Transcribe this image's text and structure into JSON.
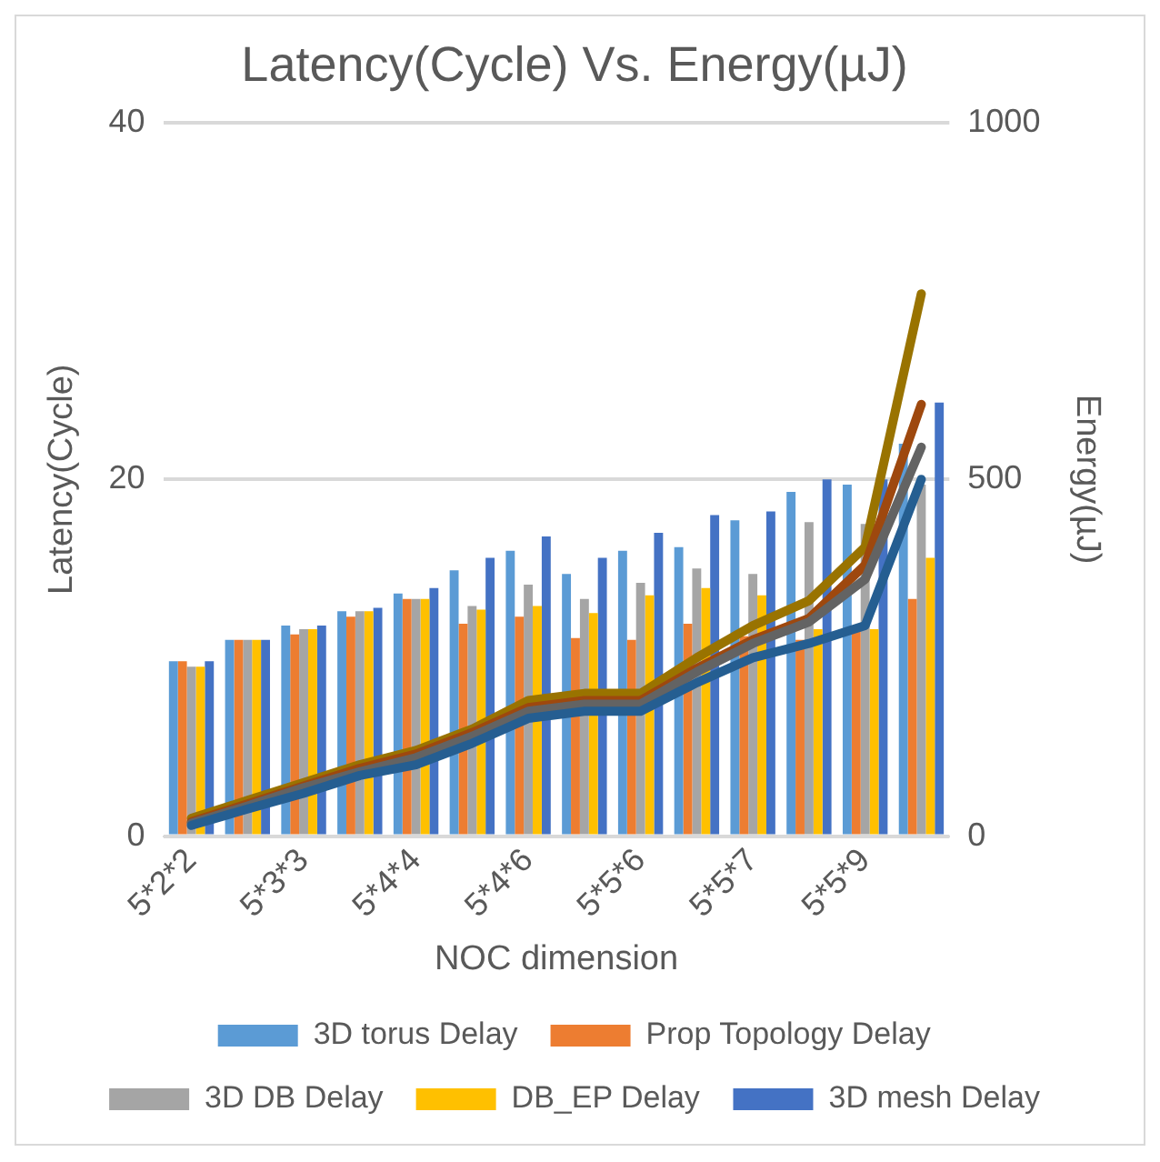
{
  "chart_data": {
    "type": "bar",
    "title": "Latency(Cycle) Vs. Energy(µJ)",
    "xlabel": "NOC dimension",
    "ylabel": "Latency(Cycle)",
    "y2label": "Energy(µJ)",
    "categories": [
      "5*2*2",
      null,
      "5*3*3",
      null,
      "5*4*4",
      null,
      "5*4*6",
      null,
      "5*5*6",
      null,
      "5*5*7",
      null,
      "5*5*9",
      null
    ],
    "series": [
      {
        "name": "3D torus Delay",
        "color": "#5b9bd5",
        "values": [
          9.8,
          11.0,
          11.8,
          12.6,
          13.6,
          14.9,
          16.0,
          14.7,
          16.0,
          16.2,
          17.7,
          19.3,
          19.7,
          22
        ]
      },
      {
        "name": "Prop Topology Delay",
        "color": "#ed7d31",
        "values": [
          9.8,
          11.0,
          11.3,
          12.3,
          13.3,
          11.9,
          12.3,
          11.1,
          11.0,
          11.9,
          11.2,
          11.0,
          11.5,
          13.3
        ]
      },
      {
        "name": "3D DB Delay",
        "color": "#a5a5a5",
        "values": [
          9.5,
          11.0,
          11.6,
          12.6,
          13.3,
          12.9,
          14.1,
          13.3,
          14.2,
          15.0,
          14.7,
          17.6,
          17.5,
          19.7
        ]
      },
      {
        "name": "DB_EP Delay",
        "color": "#ffc000",
        "values": [
          9.5,
          11.0,
          11.6,
          12.6,
          13.3,
          12.7,
          12.9,
          12.5,
          13.5,
          13.9,
          13.5,
          11.6,
          11.6,
          15.6
        ]
      },
      {
        "name": "3D mesh Delay",
        "color": "#4472c4",
        "values": [
          9.8,
          11.0,
          11.8,
          12.8,
          13.9,
          15.6,
          16.8,
          15.6,
          17.0,
          18.0,
          18.2,
          20.0,
          20.0,
          24.3
        ]
      },
      {
        "type": "line",
        "axis": "y2",
        "color": "#255e91",
        "values": [
          15,
          38,
          60,
          85,
          100,
          130,
          165,
          175,
          175,
          215,
          250,
          270,
          295,
          500
        ]
      },
      {
        "type": "line",
        "axis": "y2",
        "color": "#636363",
        "values": [
          18,
          42,
          68,
          90,
          110,
          140,
          175,
          185,
          185,
          230,
          270,
          300,
          360,
          545
        ]
      },
      {
        "type": "line",
        "axis": "y2",
        "color": "#9e480e",
        "values": [
          20,
          45,
          70,
          95,
          115,
          145,
          180,
          190,
          190,
          235,
          275,
          305,
          380,
          605
        ]
      },
      {
        "type": "line",
        "axis": "y2",
        "color": "#997300",
        "values": [
          25,
          50,
          75,
          100,
          120,
          150,
          190,
          200,
          200,
          250,
          295,
          330,
          405,
          760
        ]
      }
    ],
    "ylim": [
      0,
      40
    ],
    "yticks": [
      0,
      20,
      40
    ],
    "y2lim": [
      0,
      1000
    ],
    "y2ticks": [
      0,
      500,
      1000
    ],
    "grid": "y",
    "legend": "bottom",
    "marker": "none",
    "line_style": "solid"
  }
}
